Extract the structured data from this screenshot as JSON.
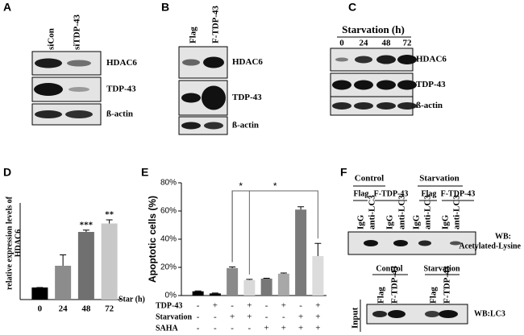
{
  "panel_labels": [
    "A",
    "B",
    "C",
    "D",
    "E",
    "F"
  ],
  "blot_a": {
    "lanes": [
      "siCon",
      "siTDP-43"
    ],
    "proteins": [
      "HDAC6",
      "TDP-43",
      "ß-actin"
    ]
  },
  "blot_b": {
    "lanes": [
      "Flag",
      "F-TDP-43"
    ],
    "proteins": [
      "HDAC6",
      "TDP-43",
      "ß-actin"
    ]
  },
  "blot_c": {
    "title": "Starvation (h)",
    "lanes": [
      "0",
      "24",
      "48",
      "72"
    ],
    "proteins": [
      "HDAC6",
      "TDP-43",
      "ß-actin"
    ]
  },
  "blot_f": {
    "groups": [
      "Control",
      "Starvation"
    ],
    "plasmids": [
      "Flag",
      "F-TDP-43",
      "Flag",
      "F-TDP-43"
    ],
    "antibodies": [
      "IgG",
      "anti-LC3",
      "IgG",
      "anti-LC3",
      "IgG",
      "anti-LC3",
      "IgG",
      "anti-LC3"
    ],
    "wb": [
      "WB:",
      "Acetylated-Lysine"
    ],
    "input_groups": [
      "Control",
      "Starvation"
    ],
    "input_lanes": [
      "Flag",
      "F-TDP-43",
      "Flag",
      "F-TDP-43"
    ],
    "input_label": "Input",
    "input_wb": "WB:LC3"
  },
  "chart_data": [
    {
      "type": "bar",
      "y_label": [
        "relative expression levels of",
        "HDAC6"
      ],
      "x_label": "Star (h)",
      "categories": [
        "0",
        "24",
        "48",
        "72"
      ],
      "values": [
        1,
        2.8,
        5.6,
        6.3
      ],
      "errors": [
        0,
        0.9,
        0.15,
        0.3
      ],
      "colors": [
        "#000000",
        "#8c8c8c",
        "#707070",
        "#c8c8c8"
      ],
      "ylim": [
        0,
        8
      ],
      "significance": [
        null,
        null,
        "***",
        "**"
      ]
    },
    {
      "type": "bar",
      "y_label": "Apoptotic cells (%)",
      "ylim": [
        0,
        80
      ],
      "yticks": [
        {
          "value": 0,
          "label": "0%"
        },
        {
          "value": 20,
          "label": "20%"
        },
        {
          "value": 40,
          "label": "40%"
        },
        {
          "value": 60,
          "label": "60%"
        },
        {
          "value": 80,
          "label": "80%"
        }
      ],
      "values": [
        3,
        1.5,
        19.5,
        11,
        12,
        15.5,
        61,
        28
      ],
      "errors": [
        0.3,
        0.3,
        0.8,
        0.5,
        0.3,
        0.5,
        2,
        9
      ],
      "colors": [
        "#000000",
        "#000000",
        "#8a8a8a",
        "#d9d9d9",
        "#777777",
        "#a8a8a8",
        "#7a7a7a",
        "#dcdcdc"
      ],
      "conditions": [
        {
          "name": "TDP-43",
          "signs": [
            "-",
            "+",
            "-",
            "+",
            "-",
            "+",
            "-",
            "+"
          ]
        },
        {
          "name": "Starvation",
          "signs": [
            "-",
            "-",
            "+",
            "+",
            "-",
            "-",
            "+",
            "+"
          ]
        },
        {
          "name": "SAHA",
          "signs": [
            "-",
            "-",
            "-",
            "-",
            "+",
            "+",
            "+",
            "+"
          ]
        }
      ],
      "brackets": [
        {
          "from": 2,
          "to": 3,
          "label": "*"
        },
        {
          "from": 2,
          "to": 7,
          "label": "*"
        }
      ]
    }
  ]
}
